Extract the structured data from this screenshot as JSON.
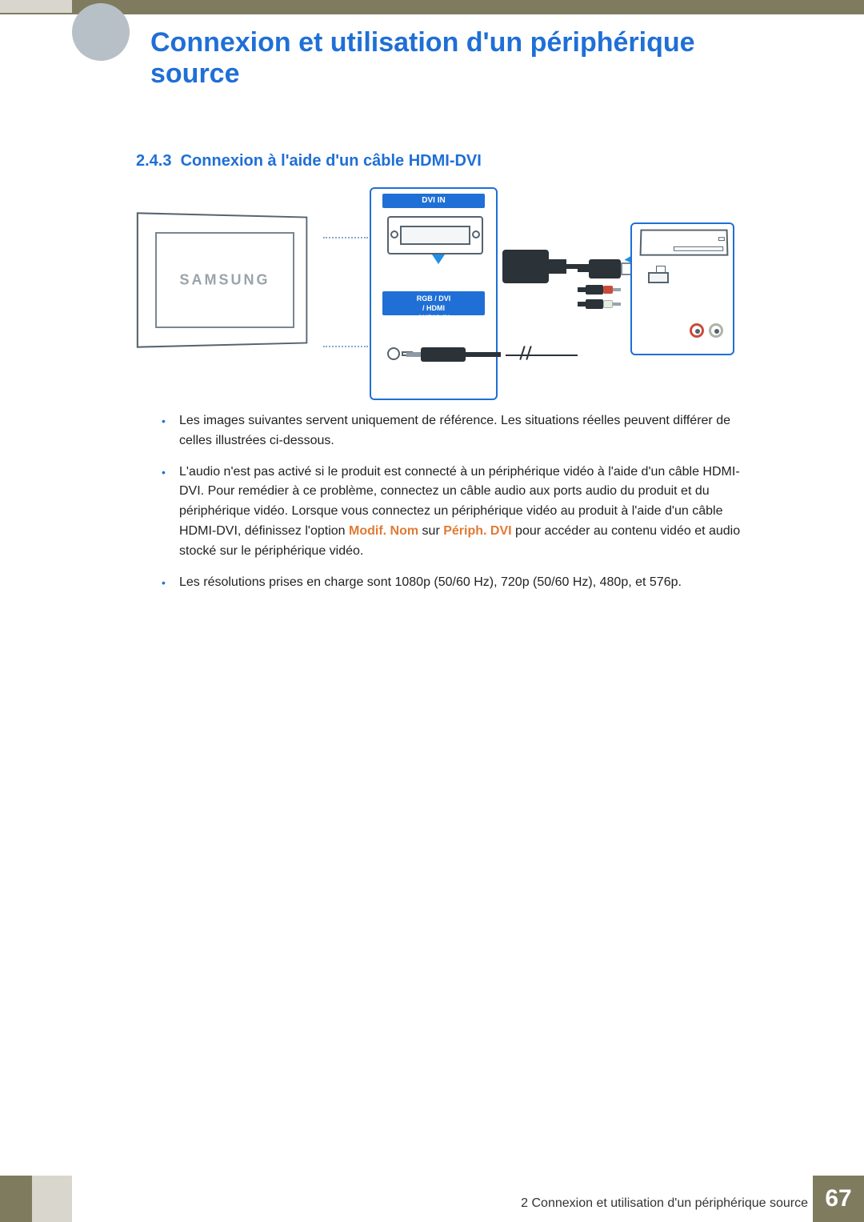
{
  "colors": {
    "header_bar": "#7f7b5f",
    "left_stripe": "#d9d7cd",
    "heading_blue": "#1f6fd6",
    "accent_orange": "#e07a34",
    "text": "#222222"
  },
  "chapter": {
    "title": "Connexion et utilisation d'un périphérique source"
  },
  "section": {
    "number": "2.4.3",
    "title": "Connexion à l'aide d'un câble HDMI-DVI"
  },
  "diagram": {
    "monitor_brand": "SAMSUNG",
    "port_label_top": "DVI IN",
    "port_label_bottom_line1": "RGB / DVI",
    "port_label_bottom_line2": "/ HDMI",
    "port_label_bottom_line3": "AUDIO IN"
  },
  "bullets": {
    "item1": "Les images suivantes servent uniquement de référence. Les situations réelles peuvent différer de celles illustrées ci-dessous.",
    "item2_pre": "L'audio n'est pas activé si le produit est connecté à un périphérique vidéo à l'aide d'un câble HDMI-DVI. Pour remédier à ce problème, connectez un câble audio aux ports audio du produit et du périphérique vidéo. Lorsque vous connectez un périphérique vidéo au produit à l'aide d'un câble HDMI-DVI, définissez l'option ",
    "item2_accent1": "Modif. Nom",
    "item2_mid": " sur ",
    "item2_accent2": "Périph. DVI",
    "item2_post": " pour accéder au contenu vidéo et audio stocké sur le périphérique vidéo.",
    "item3": "Les résolutions prises en charge sont 1080p (50/60 Hz), 720p (50/60 Hz), 480p, et 576p."
  },
  "footer": {
    "label": "2 Connexion et utilisation d'un périphérique source",
    "page_number": "67"
  }
}
